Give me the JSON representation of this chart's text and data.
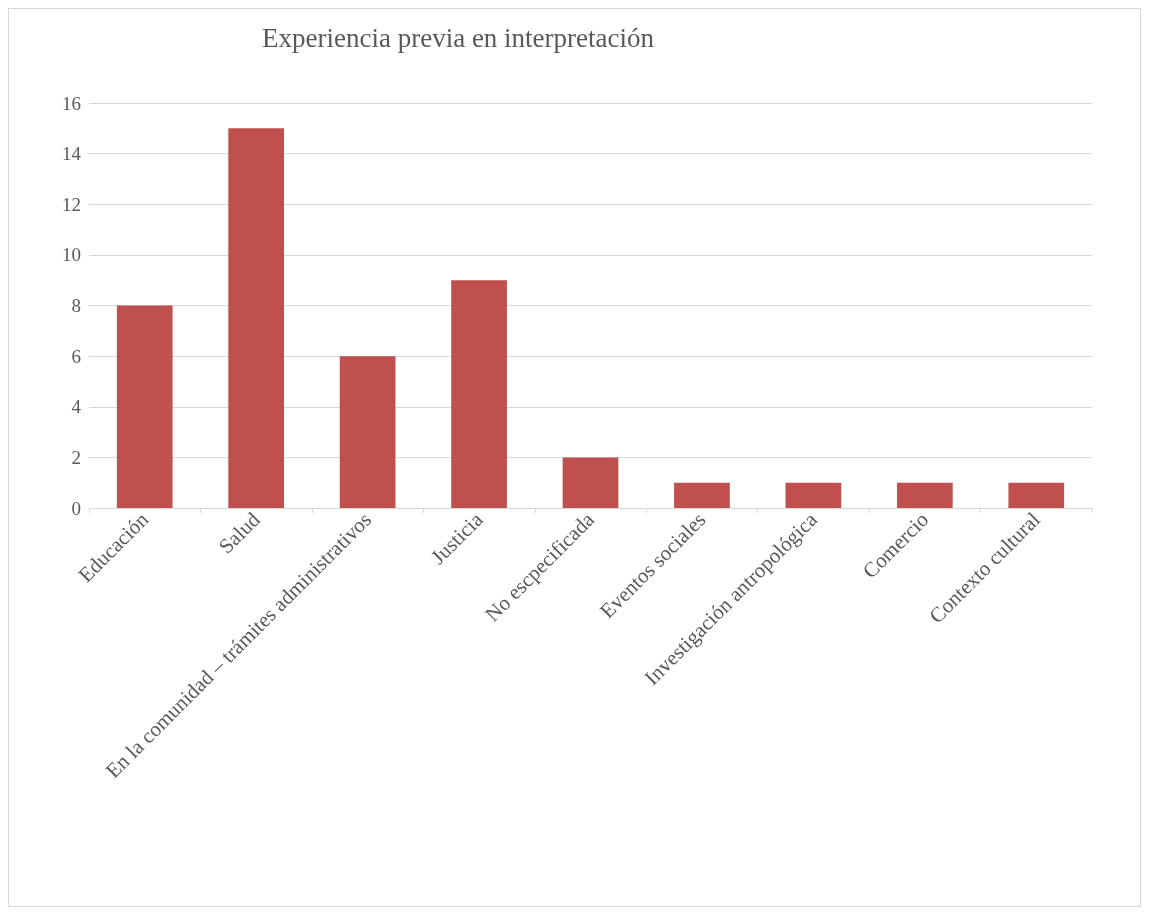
{
  "chart_data": {
    "type": "bar",
    "title": "Experiencia previa en interpretación",
    "categories": [
      "Educación",
      "Salud",
      "En la comunidad – trámites administrativos",
      "Justicia",
      "No escpecificada",
      "Eventos sociales",
      "Investigación antropológica",
      "Comercio",
      "Contexto cultural"
    ],
    "values": [
      8,
      15,
      6,
      9,
      2,
      1,
      1,
      1,
      1
    ],
    "color": "#c0504d",
    "ylim": [
      0,
      16
    ],
    "yticks": [
      0,
      2,
      4,
      6,
      8,
      10,
      12,
      14,
      16
    ],
    "grid": "y"
  }
}
